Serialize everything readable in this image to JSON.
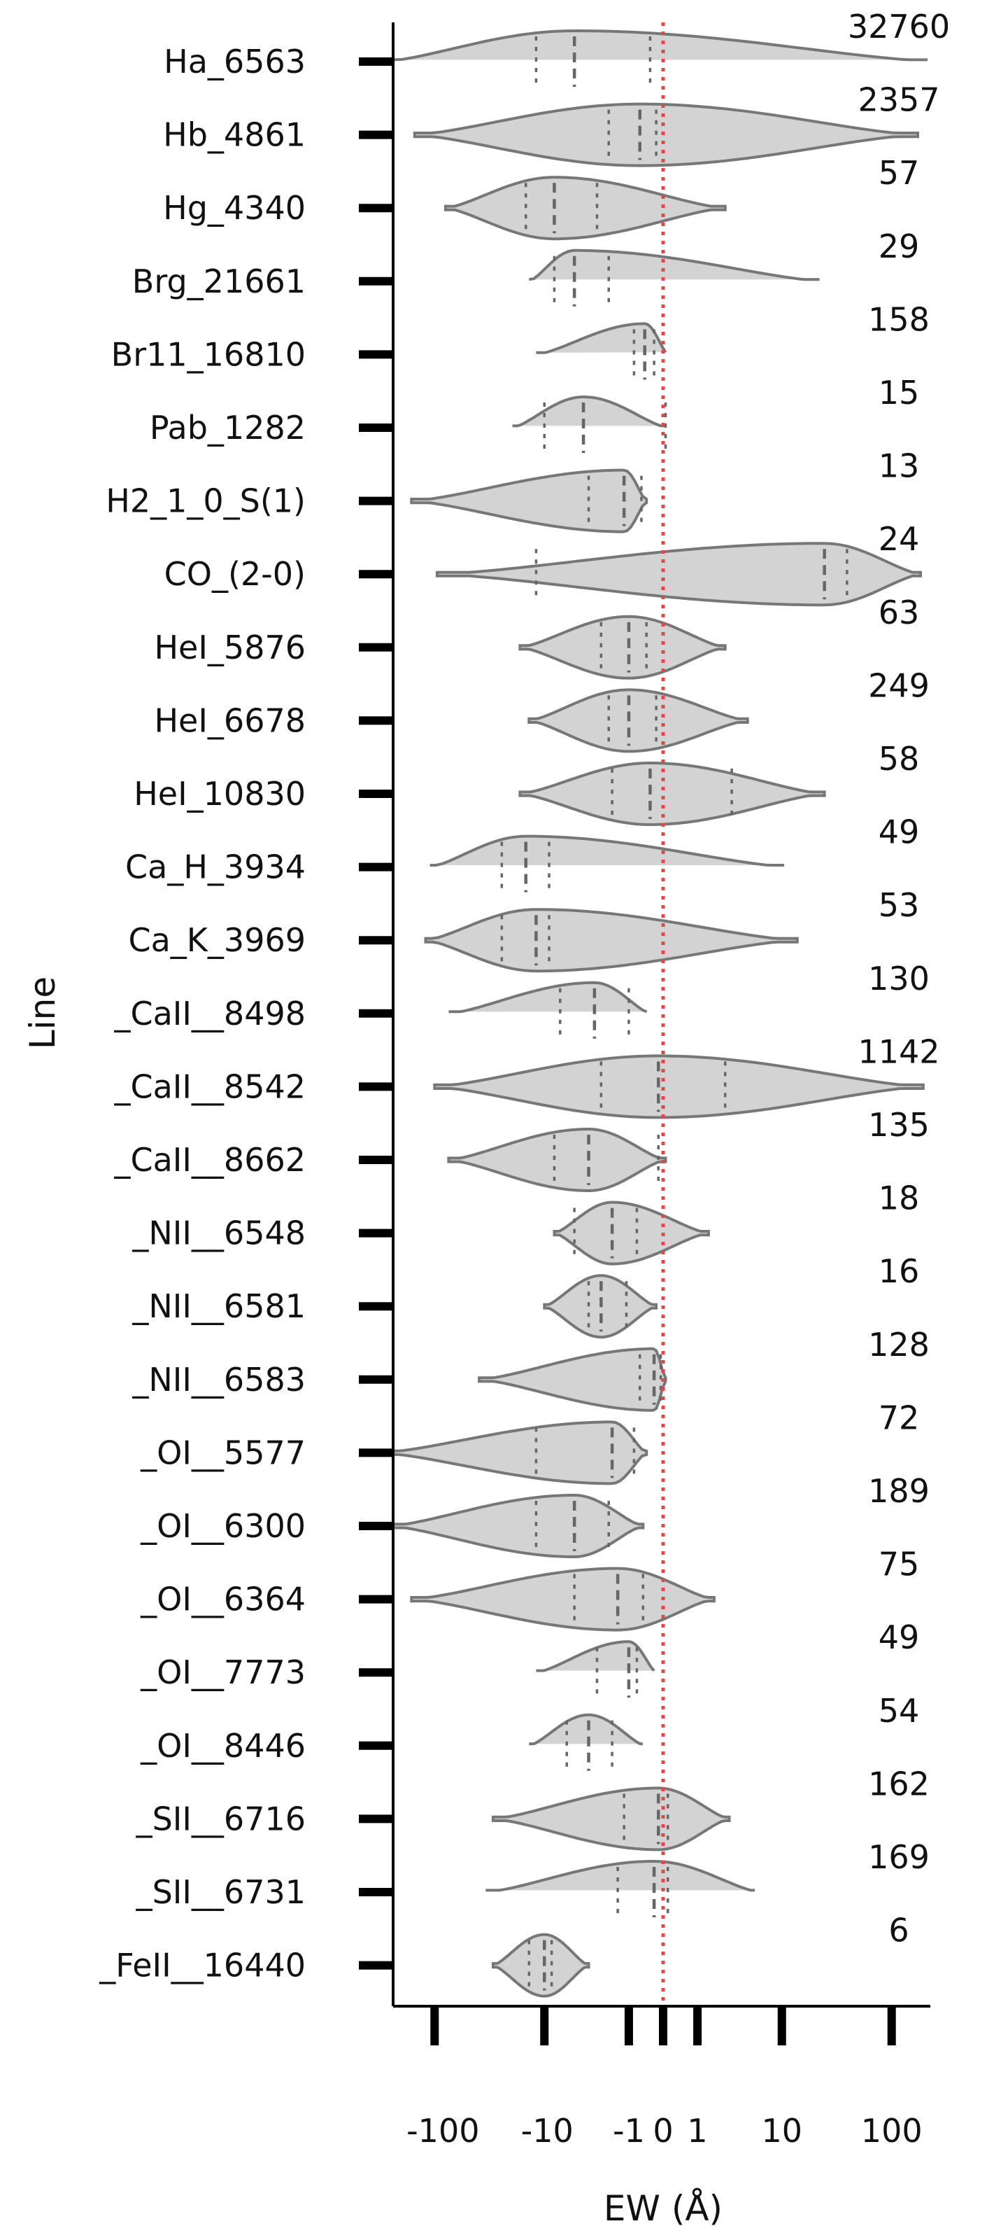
{
  "chart_data": {
    "type": "violin",
    "orientation": "horizontal",
    "xlabel": "EW (Å)",
    "ylabel": "Line",
    "x_scale": "symlog",
    "xlim": [
      -300,
      250
    ],
    "x_ticks": [
      {
        "value": -100,
        "label": "-100"
      },
      {
        "value": -10,
        "label": "-10"
      },
      {
        "value": -1,
        "label": "-1"
      },
      {
        "value": 0,
        "label": "0"
      },
      {
        "value": 1,
        "label": "1"
      },
      {
        "value": 10,
        "label": "10"
      },
      {
        "value": 100,
        "label": "100"
      }
    ],
    "reference_line": {
      "x": 0,
      "style": "dotted",
      "color": "#e04848"
    },
    "fill_color": "#d3d3d3",
    "edge_color": "#777777",
    "categories": [
      {
        "name": "Ha_6563",
        "count": "32760",
        "min": -280,
        "max": 250,
        "q1": -12,
        "median": -5,
        "q3": -0.3
      },
      {
        "name": "Hb_4861",
        "count": "2357",
        "min": -150,
        "max": 170,
        "q1": -2,
        "median": -0.6,
        "q3": -0.15
      },
      {
        "name": "Hg_4340",
        "count": "57",
        "min": -80,
        "max": 2.5,
        "q1": -15,
        "median": -8,
        "q3": -2.8
      },
      {
        "name": "Brg_21661",
        "count": "29",
        "min": -14,
        "max": 25,
        "q1": -8,
        "median": -5,
        "q3": -2
      },
      {
        "name": "Br11_16810",
        "count": "158",
        "min": -12,
        "max": 0.1,
        "q1": -0.8,
        "median": -0.45,
        "q3": -0.2
      },
      {
        "name": "Pab_1282",
        "count": "15",
        "min": -20,
        "max": 0.1,
        "q1": -10,
        "median": -4,
        "q3": 0.05
      },
      {
        "name": "H2_1_0_S(1)",
        "count": "13",
        "min": -160,
        "max": -0.4,
        "q1": -3.5,
        "median": -1.2,
        "q3": -0.55
      },
      {
        "name": "CO_(2-0)",
        "count": "24",
        "min": -95,
        "max": 180,
        "q1": -12,
        "median": 25,
        "q3": 40
      },
      {
        "name": "HeI_5876",
        "count": "63",
        "min": -17,
        "max": 2.5,
        "q1": -2.5,
        "median": -1,
        "q3": -0.4
      },
      {
        "name": "HeI_6678",
        "count": "249",
        "min": -14,
        "max": 4.5,
        "q1": -2,
        "median": -1,
        "q3": -0.15
      },
      {
        "name": "HeI_10830",
        "count": "58",
        "min": -17,
        "max": 25,
        "q1": -1.8,
        "median": -0.3,
        "q3": 3
      },
      {
        "name": "Ca_H_3934",
        "count": "49",
        "min": -110,
        "max": 12,
        "q1": -25,
        "median": -15,
        "q3": -9
      },
      {
        "name": "Ca_K_3969",
        "count": "53",
        "min": -120,
        "max": 14,
        "q1": -25,
        "median": -12,
        "q3": -9
      },
      {
        "name": "_CaII__8498",
        "count": "130",
        "min": -75,
        "max": -0.3,
        "q1": -7,
        "median": -3,
        "q3": -1
      },
      {
        "name": "_CaII__8542",
        "count": "1142",
        "min": -100,
        "max": 190,
        "q1": -2.5,
        "median": -0.1,
        "q3": 2.5
      },
      {
        "name": "_CaII__8662",
        "count": "135",
        "min": -75,
        "max": 0.05,
        "q1": -8,
        "median": -3.5,
        "q3": -0.1
      },
      {
        "name": "_NII__6548",
        "count": "18",
        "min": -8,
        "max": 1.5,
        "q1": -5,
        "median": -1.8,
        "q3": -0.7
      },
      {
        "name": "_NII__6581",
        "count": "16",
        "min": -10,
        "max": -0.15,
        "q1": -3.5,
        "median": -2.5,
        "q3": -1.1
      },
      {
        "name": "_NII__6583",
        "count": "128",
        "min": -40,
        "max": 0.05,
        "q1": -0.6,
        "median": -0.2,
        "q3": -0.05
      },
      {
        "name": "_OI__5577",
        "count": "72",
        "min": -300,
        "max": -0.4,
        "q1": -12,
        "median": -1.8,
        "q3": -0.8
      },
      {
        "name": "_OI__6300",
        "count": "189",
        "min": -250,
        "max": -0.5,
        "q1": -12,
        "median": -5,
        "q3": -2
      },
      {
        "name": "_OI__6364",
        "count": "75",
        "min": -160,
        "max": 1.8,
        "q1": -5,
        "median": -1.5,
        "q3": -0.5
      },
      {
        "name": "_OI__7773",
        "count": "49",
        "min": -12,
        "max": -0.15,
        "q1": -2.8,
        "median": -1,
        "q3": -0.7
      },
      {
        "name": "_OI__8446",
        "count": "54",
        "min": -14,
        "max": -0.45,
        "q1": -6,
        "median": -3.5,
        "q3": -1.8
      },
      {
        "name": "_SII__6716",
        "count": "162",
        "min": -30,
        "max": 2.8,
        "q1": -1.2,
        "median": -0.1,
        "q3": 0.1
      },
      {
        "name": "_SII__6731",
        "count": "169",
        "min": -35,
        "max": 6,
        "q1": -1.5,
        "median": -0.2,
        "q3": 0.1
      },
      {
        "name": "_FeII__16440",
        "count": "6",
        "min": -30,
        "max": -3.5,
        "q1": -14,
        "median": -10,
        "q3": -8.5
      }
    ]
  }
}
